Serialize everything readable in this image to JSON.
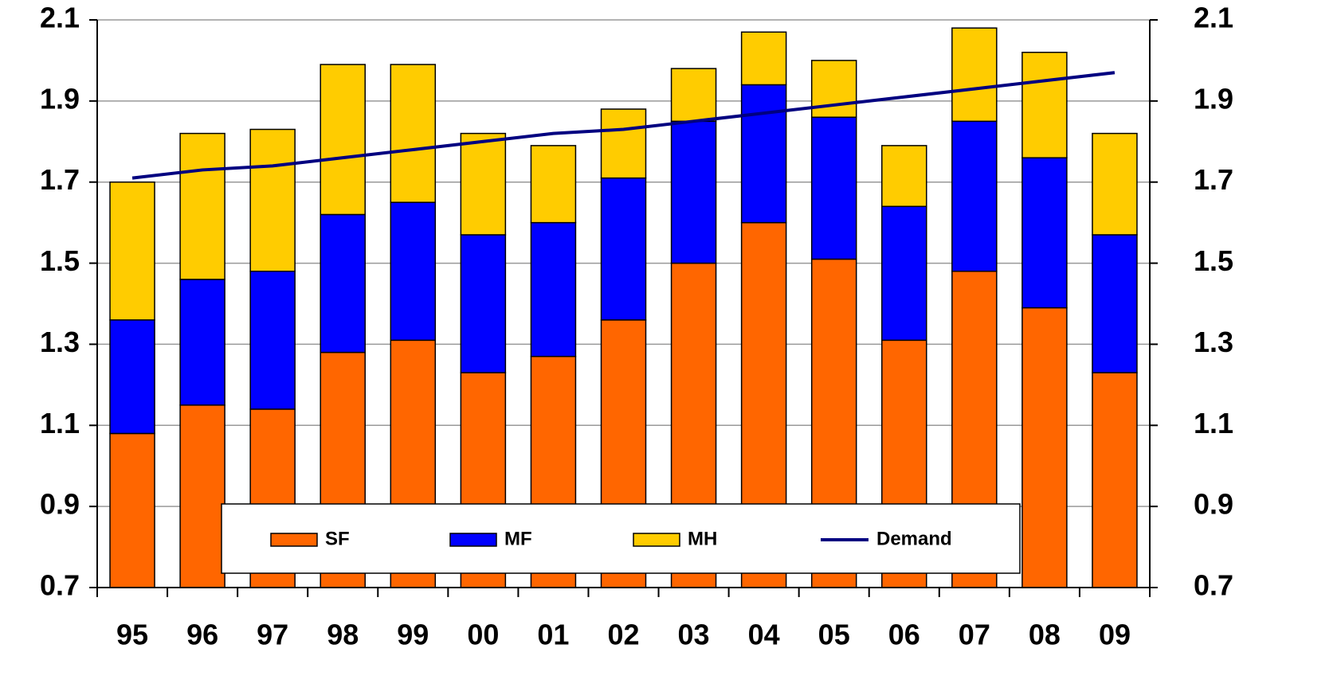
{
  "chart_data": {
    "type": "stacked-bar-line",
    "categories": [
      "95",
      "96",
      "97",
      "98",
      "99",
      "00",
      "01",
      "02",
      "03",
      "04",
      "05",
      "06",
      "07",
      "08",
      "09"
    ],
    "series": [
      {
        "name": "SF",
        "color": "#ff6600",
        "values": [
          1.08,
          1.15,
          1.14,
          1.28,
          1.31,
          1.23,
          1.27,
          1.36,
          1.5,
          1.6,
          1.51,
          1.31,
          1.48,
          1.39,
          1.23
        ]
      },
      {
        "name": "MF",
        "color": "#0000ff",
        "values": [
          0.28,
          0.31,
          0.34,
          0.34,
          0.34,
          0.34,
          0.33,
          0.35,
          0.35,
          0.34,
          0.35,
          0.33,
          0.37,
          0.37,
          0.34
        ]
      },
      {
        "name": "MH",
        "color": "#ffcc00",
        "values": [
          0.34,
          0.36,
          0.35,
          0.37,
          0.34,
          0.25,
          0.19,
          0.17,
          0.13,
          0.13,
          0.14,
          0.15,
          0.23,
          0.26,
          0.25
        ]
      },
      {
        "name": "Demand",
        "type": "line",
        "color": "#000080",
        "values": [
          1.71,
          1.73,
          1.74,
          1.76,
          1.78,
          1.8,
          1.82,
          1.83,
          1.85,
          1.87,
          1.89,
          1.91,
          1.93,
          1.95,
          1.97
        ]
      }
    ],
    "ylim": [
      0.7,
      2.1
    ],
    "yticks": [
      0.7,
      0.9,
      1.1,
      1.3,
      1.5,
      1.7,
      1.9,
      2.1
    ],
    "y2lim": [
      0.7,
      2.1
    ],
    "y2ticks": [
      0.7,
      0.9,
      1.1,
      1.3,
      1.5,
      1.7,
      1.9,
      2.1
    ],
    "grid": true,
    "legend": "bottom"
  }
}
